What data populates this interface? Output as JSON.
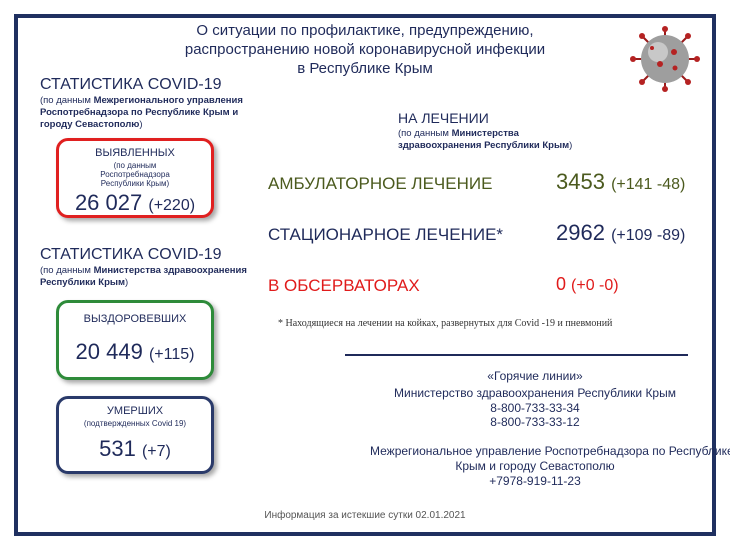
{
  "header": {
    "title_lines": [
      "О ситуации по профилактике, предупреждению,",
      "распространению новой коронавирусной инфекции",
      "в Республике Крым"
    ]
  },
  "left": {
    "section1": {
      "heading": "СТАТИСТИКА COVID-19",
      "source": {
        "prefix": "(по данным",
        "body": "Межрегионального управления Роспотребнадзора по Республике Крым и городу Севастополю",
        "suffix": ")"
      }
    },
    "detected": {
      "label": "ВЫЯВЛЕННЫХ",
      "note": "(по данным Роспотребнадзора Республики Крым)",
      "value": "26 027",
      "change": "(+220)"
    },
    "section2": {
      "heading": "СТАТИСТИКА COVID-19",
      "source": {
        "prefix": "(по данным",
        "body": "Министерства здравоохранения Республики Крым",
        "suffix": ")"
      }
    },
    "recovered": {
      "label": "ВЫЗДОРОВЕВШИХ",
      "value": "20 449",
      "change": "(+115)"
    },
    "deaths": {
      "label": "УМЕРШИХ",
      "note": "(подтвержденных Covid 19)",
      "value": "531",
      "change": "(+7)"
    }
  },
  "treatment": {
    "heading": "НА ЛЕЧЕНИИ",
    "source": {
      "prefix": "(по данным",
      "body": "Министерства здравоохранения Республики Крым",
      "suffix": ")"
    },
    "rows": [
      {
        "label": "АМБУЛАТОРНОЕ ЛЕЧЕНИЕ",
        "value": "3453",
        "change": "(+141 -48)"
      },
      {
        "label": "СТАЦИОНАРНОЕ ЛЕЧЕНИЕ*",
        "value": "2962",
        "change": "(+109 -89)"
      },
      {
        "label": "В ОБСЕРВАТОРАХ",
        "value": "0",
        "change": "(+0 -0)"
      }
    ],
    "footnote": "* Находящиеся на лечении на койках, развернутых для Covid -19 и пневмоний"
  },
  "hotlines": {
    "title": "«Горячие линии»",
    "lines": [
      "Министерство здравоохранения Республики Крым",
      "8-800-733-33-34",
      "8-800-733-33-12",
      "Межрегиональное управление Роспотребнадзора по Республике",
      "Крым и городу Севастополю",
      "+7978-919-11-23"
    ]
  },
  "footer": "Информация за истекшие сутки 02.01.2021"
}
